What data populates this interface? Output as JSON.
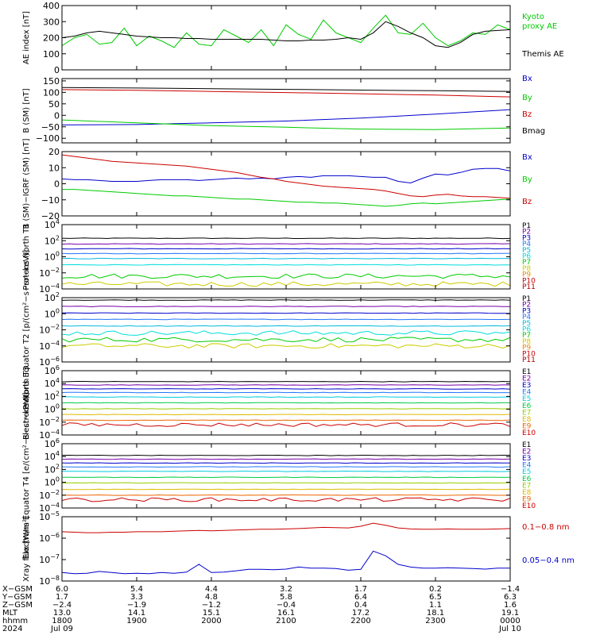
{
  "chart_data": [
    {
      "type": "line",
      "ylabel": "AE index [nT]",
      "ylim": [
        0,
        400
      ],
      "yticks": [
        {
          "v": 0,
          "label": "0"
        },
        {
          "v": 100,
          "label": "100"
        },
        {
          "v": 200,
          "label": "200"
        },
        {
          "v": 300,
          "label": "300"
        },
        {
          "v": 400,
          "label": "400"
        }
      ],
      "x": [
        1800,
        1810,
        1820,
        1830,
        1840,
        1850,
        1900,
        1910,
        1920,
        1930,
        1940,
        1950,
        2000,
        2010,
        2020,
        2030,
        2040,
        2050,
        2100,
        2110,
        2120,
        2130,
        2140,
        2150,
        2200,
        2210,
        2220,
        2230,
        2240,
        2250,
        2300,
        2310,
        2320,
        2330,
        2340,
        2350,
        2400
      ],
      "series": [
        {
          "name": "Kyoto proxy AE",
          "color": "#00cc00",
          "values": [
            150,
            200,
            220,
            160,
            170,
            260,
            150,
            210,
            180,
            140,
            230,
            160,
            150,
            250,
            210,
            170,
            250,
            150,
            280,
            220,
            190,
            310,
            230,
            200,
            170,
            260,
            340,
            230,
            220,
            290,
            200,
            150,
            180,
            230,
            220,
            280,
            250
          ]
        },
        {
          "name": "Themis AE",
          "color": "#000000",
          "values": [
            200,
            210,
            230,
            240,
            230,
            220,
            210,
            205,
            200,
            200,
            195,
            195,
            190,
            190,
            190,
            190,
            190,
            185,
            180,
            180,
            185,
            185,
            190,
            200,
            190,
            230,
            300,
            270,
            230,
            200,
            150,
            140,
            170,
            220,
            240,
            245,
            250
          ]
        }
      ]
    },
    {
      "type": "line",
      "ylabel": "B (SM) [nT]",
      "ylim": [
        -120,
        160
      ],
      "yticks": [
        {
          "v": -100,
          "label": "−100"
        },
        {
          "v": -50,
          "label": "−50"
        },
        {
          "v": 0,
          "label": "0"
        },
        {
          "v": 50,
          "label": "50"
        },
        {
          "v": 100,
          "label": "100"
        },
        {
          "v": 150,
          "label": "150"
        }
      ],
      "x": [
        1800,
        1900,
        2000,
        2100,
        2200,
        2300,
        2400
      ],
      "series": [
        {
          "name": "Bx",
          "color": "#0000cc",
          "values": [
            -42,
            -40,
            -33,
            -25,
            -12,
            5,
            25
          ]
        },
        {
          "name": "By",
          "color": "#00cc00",
          "values": [
            -20,
            -33,
            -45,
            -52,
            -60,
            -62,
            -55
          ]
        },
        {
          "name": "Bz",
          "color": "#cc0000",
          "values": [
            112,
            109,
            104,
            99,
            94,
            88,
            80
          ]
        },
        {
          "name": "Bmag",
          "color": "#000000",
          "values": [
            121,
            119,
            116,
            113,
            110,
            107,
            104
          ]
        }
      ]
    },
    {
      "type": "line",
      "ylabel": "B (SM)−IGRF (SM) [nT]",
      "ylim": [
        -20,
        20
      ],
      "yticks": [
        {
          "v": -20,
          "label": "−20"
        },
        {
          "v": -10,
          "label": "−10"
        },
        {
          "v": 0,
          "label": "0"
        },
        {
          "v": 10,
          "label": "10"
        },
        {
          "v": 20,
          "label": "20"
        }
      ],
      "x": [
        1800,
        1810,
        1820,
        1830,
        1840,
        1850,
        1900,
        1910,
        1920,
        1930,
        1940,
        1950,
        2000,
        2010,
        2020,
        2030,
        2040,
        2050,
        2100,
        2110,
        2120,
        2130,
        2140,
        2150,
        2200,
        2210,
        2220,
        2230,
        2240,
        2250,
        2300,
        2310,
        2320,
        2330,
        2340,
        2350,
        2400
      ],
      "series": [
        {
          "name": "Bx",
          "color": "#0000cc",
          "values": [
            3,
            2.5,
            2.5,
            2,
            1.5,
            1.5,
            1.5,
            2,
            2.5,
            2.5,
            2.5,
            2,
            2.5,
            3,
            3.5,
            3,
            3.5,
            3,
            4,
            4.5,
            4,
            5,
            5,
            5,
            4.5,
            4,
            4,
            1.5,
            0.5,
            3.5,
            6,
            5.5,
            7,
            9,
            9.5,
            9.5,
            8
          ]
        },
        {
          "name": "By",
          "color": "#00cc00",
          "values": [
            -3.5,
            -3.5,
            -4,
            -4.5,
            -5,
            -5.5,
            -6,
            -6.5,
            -7,
            -7.5,
            -7.5,
            -8,
            -8.5,
            -9,
            -9.5,
            -9.5,
            -10,
            -10.5,
            -11,
            -11.5,
            -11.5,
            -12,
            -12,
            -12.5,
            -13,
            -13.5,
            -14,
            -13.5,
            -12.5,
            -12,
            -12.5,
            -12,
            -11.5,
            -11,
            -10.5,
            -10,
            -9.5
          ]
        },
        {
          "name": "Bz",
          "color": "#cc0000",
          "values": [
            18,
            17,
            16,
            15,
            14,
            13.5,
            13,
            12.5,
            12,
            11.5,
            11,
            10,
            9,
            8,
            7,
            5.5,
            4,
            3,
            1.5,
            0.5,
            -0.5,
            -1.5,
            -2,
            -2.5,
            -3,
            -3.5,
            -4.5,
            -6,
            -7.5,
            -8,
            -7,
            -6.5,
            -7.5,
            -8,
            -8,
            -8.5,
            -9
          ]
        }
      ]
    },
    {
      "type": "line",
      "ylabel": "Protons North T1",
      "log": true,
      "ylim": [
        0.0001,
        10000.0
      ],
      "yticks": [
        {
          "v": 0.0001,
          "sup": "−4"
        },
        {
          "v": 0.01,
          "sup": "−2"
        },
        {
          "v": 1,
          "sup": "0"
        },
        {
          "v": 100,
          "sup": "2"
        },
        {
          "v": 10000.0,
          "sup": "4"
        }
      ],
      "series": [
        {
          "name": "P1",
          "color": "#000000",
          "level": 200
        },
        {
          "name": "P2",
          "color": "#7700aa",
          "level": 40
        },
        {
          "name": "P3",
          "color": "#0000cc",
          "level": 10
        },
        {
          "name": "P4",
          "color": "#2277ff",
          "level": 2.5
        },
        {
          "name": "P5",
          "color": "#00bbdd",
          "level": 0.6
        },
        {
          "name": "P6",
          "color": "#00dddd",
          "level": 0.1
        },
        {
          "name": "P7",
          "color": "#00cc00",
          "level": 0.004
        },
        {
          "name": "P8",
          "color": "#cccc00",
          "level": 0.0004
        },
        {
          "name": "P9",
          "color": "#ee8800",
          "level": null
        },
        {
          "name": "P10",
          "color": "#cc0000",
          "level": null
        },
        {
          "name": "P11",
          "color": "#aa0000",
          "level": null
        }
      ]
    },
    {
      "type": "line",
      "ylabel": "Protons Equator T2 [p/(cm²−s−sr−keV)]",
      "log": true,
      "ylim": [
        1e-06,
        100.0
      ],
      "yticks": [
        {
          "v": 1e-06,
          "sup": "−6"
        },
        {
          "v": 0.0001,
          "sup": "−4"
        },
        {
          "v": 0.01,
          "sup": "−2"
        },
        {
          "v": 1,
          "sup": "0"
        },
        {
          "v": 100,
          "sup": "2"
        }
      ],
      "series": [
        {
          "name": "P1",
          "color": "#000000",
          "level": 50
        },
        {
          "name": "P2",
          "color": "#7700aa",
          "level": 8
        },
        {
          "name": "P3",
          "color": "#0000cc",
          "level": 1.2
        },
        {
          "name": "P4",
          "color": "#2277ff",
          "level": 0.2
        },
        {
          "name": "P5",
          "color": "#00bbdd",
          "level": 0.03
        },
        {
          "name": "P6",
          "color": "#00dddd",
          "level": 0.004
        },
        {
          "name": "P7",
          "color": "#00cc00",
          "level": 0.0006
        },
        {
          "name": "P8",
          "color": "#cccc00",
          "level": 0.0001
        },
        {
          "name": "P9",
          "color": "#ee8800",
          "level": null
        },
        {
          "name": "P10",
          "color": "#cc0000",
          "level": null
        },
        {
          "name": "P11",
          "color": "#aa0000",
          "level": null
        }
      ]
    },
    {
      "type": "line",
      "ylabel": "Electrons North T3",
      "log": true,
      "ylim": [
        0.0001,
        1000000.0
      ],
      "yticks": [
        {
          "v": 0.0001,
          "sup": "−4"
        },
        {
          "v": 0.01,
          "sup": "−2"
        },
        {
          "v": 1,
          "sup": "0"
        },
        {
          "v": 100,
          "sup": "2"
        },
        {
          "v": 10000.0,
          "sup": "4"
        },
        {
          "v": 1000000.0,
          "sup": "6"
        }
      ],
      "series": [
        {
          "name": "E1",
          "color": "#000000",
          "level": 20000
        },
        {
          "name": "E2",
          "color": "#7700aa",
          "level": 6000
        },
        {
          "name": "E3",
          "color": "#0000cc",
          "level": 1500
        },
        {
          "name": "E4",
          "color": "#2277ff",
          "level": 400
        },
        {
          "name": "E5",
          "color": "#00ccdd",
          "level": 80
        },
        {
          "name": "E6",
          "color": "#00cc44",
          "level": 10
        },
        {
          "name": "E7",
          "color": "#99cc00",
          "level": 1.2
        },
        {
          "name": "E8",
          "color": "#ddbb00",
          "level": 0.15
        },
        {
          "name": "E9",
          "color": "#ee6600",
          "level": 0.02
        },
        {
          "name": "E10",
          "color": "#cc0000",
          "level": 0.004
        }
      ]
    },
    {
      "type": "line",
      "ylabel": "Electrons Equator T4 [e/(cm²−s−sr−keV)]",
      "log": true,
      "ylim": [
        0.0001,
        1000000.0
      ],
      "yticks": [
        {
          "v": 0.0001,
          "sup": "−4"
        },
        {
          "v": 0.01,
          "sup": "−2"
        },
        {
          "v": 1,
          "sup": "0"
        },
        {
          "v": 100,
          "sup": "2"
        },
        {
          "v": 10000.0,
          "sup": "4"
        },
        {
          "v": 1000000.0,
          "sup": "6"
        }
      ],
      "series": [
        {
          "name": "E1",
          "color": "#000000",
          "level": 15000
        },
        {
          "name": "E2",
          "color": "#7700aa",
          "level": 4000
        },
        {
          "name": "E3",
          "color": "#0000cc",
          "level": 1000
        },
        {
          "name": "E4",
          "color": "#2277ff",
          "level": 250
        },
        {
          "name": "E5",
          "color": "#00ccdd",
          "level": 50
        },
        {
          "name": "E6",
          "color": "#00cc44",
          "level": 6
        },
        {
          "name": "E7",
          "color": "#99cc00",
          "level": 0.8
        },
        {
          "name": "E8",
          "color": "#ddbb00",
          "level": 0.08
        },
        {
          "name": "E9",
          "color": "#ee6600",
          "level": 0.01
        },
        {
          "name": "E10",
          "color": "#cc0000",
          "level": 0.002
        }
      ]
    },
    {
      "type": "line",
      "ylabel": "Xray flux [W/m²]",
      "log": true,
      "ylim": [
        1e-08,
        1e-05
      ],
      "yticks": [
        {
          "v": 1e-08,
          "sup": "−8"
        },
        {
          "v": 1e-07,
          "sup": "−7"
        },
        {
          "v": 1e-06,
          "sup": "−6"
        },
        {
          "v": 1e-05,
          "sup": "−5"
        }
      ],
      "x": [
        1800,
        1810,
        1820,
        1830,
        1840,
        1850,
        1900,
        1910,
        1920,
        1930,
        1940,
        1950,
        2000,
        2010,
        2020,
        2030,
        2040,
        2050,
        2100,
        2110,
        2120,
        2130,
        2140,
        2150,
        2200,
        2210,
        2220,
        2230,
        2240,
        2250,
        2300,
        2310,
        2320,
        2330,
        2340,
        2350,
        2400
      ],
      "series": [
        {
          "name": "0.1−0.8 nm",
          "color": "#cc0000",
          "values": [
            2e-06,
            1.9e-06,
            1.8e-06,
            1.8e-06,
            1.9e-06,
            1.9e-06,
            2e-06,
            2e-06,
            2e-06,
            2.1e-06,
            2.2e-06,
            2.3e-06,
            2.2e-06,
            2.3e-06,
            2.4e-06,
            2.5e-06,
            2.6e-06,
            2.6e-06,
            2.7e-06,
            2.8e-06,
            3e-06,
            3.2e-06,
            3.1e-06,
            3e-06,
            3.6e-06,
            5e-06,
            4e-06,
            3e-06,
            2.7e-06,
            2.6e-06,
            2.6e-06,
            2.7e-06,
            2.6e-06,
            2.6e-06,
            2.6e-06,
            2.7e-06,
            2.8e-06
          ]
        },
        {
          "name": "0.05−0.4 nm",
          "color": "#0000cc",
          "values": [
            2.5e-08,
            2.2e-08,
            2.3e-08,
            2.8e-08,
            2.5e-08,
            2.2e-08,
            2.3e-08,
            2.2e-08,
            2.5e-08,
            2.3e-08,
            2.6e-08,
            6e-08,
            2.5e-08,
            2.6e-08,
            3e-08,
            3.5e-08,
            3.5e-08,
            3.4e-08,
            3.6e-08,
            4.5e-08,
            4e-08,
            4e-08,
            3.8e-08,
            3.2e-08,
            3.5e-08,
            2.5e-07,
            1.5e-07,
            6e-08,
            4.5e-08,
            4e-08,
            4e-08,
            4.2e-08,
            4e-08,
            3.8e-08,
            3.6e-08,
            4e-08,
            4e-08
          ]
        }
      ]
    }
  ],
  "x_axis": {
    "row_labels": [
      "X−GSM",
      "Y−GSM",
      "Z−GSM",
      "MLT",
      "hhmm",
      "2024"
    ],
    "columns": [
      {
        "values": [
          "6.0",
          "1.7",
          "−2.4",
          "13.0",
          "1800",
          "Jul 09"
        ]
      },
      {
        "values": [
          "5.4",
          "3.3",
          "−1.9",
          "14.1",
          "1900",
          ""
        ]
      },
      {
        "values": [
          "4.4",
          "4.8",
          "−1.2",
          "15.1",
          "2000",
          ""
        ]
      },
      {
        "values": [
          "3.2",
          "5.8",
          "−0.4",
          "16.1",
          "2100",
          ""
        ]
      },
      {
        "values": [
          "1.7",
          "6.4",
          "0.4",
          "17.2",
          "2200",
          ""
        ]
      },
      {
        "values": [
          "0.2",
          "6.5",
          "1.1",
          "18.1",
          "2300",
          ""
        ]
      },
      {
        "values": [
          "−1.4",
          "6.3",
          "1.6",
          "19.1",
          "0000",
          "Jul 10"
        ]
      }
    ]
  },
  "colors": {
    "axis": "#000000",
    "background": "#ffffff"
  }
}
